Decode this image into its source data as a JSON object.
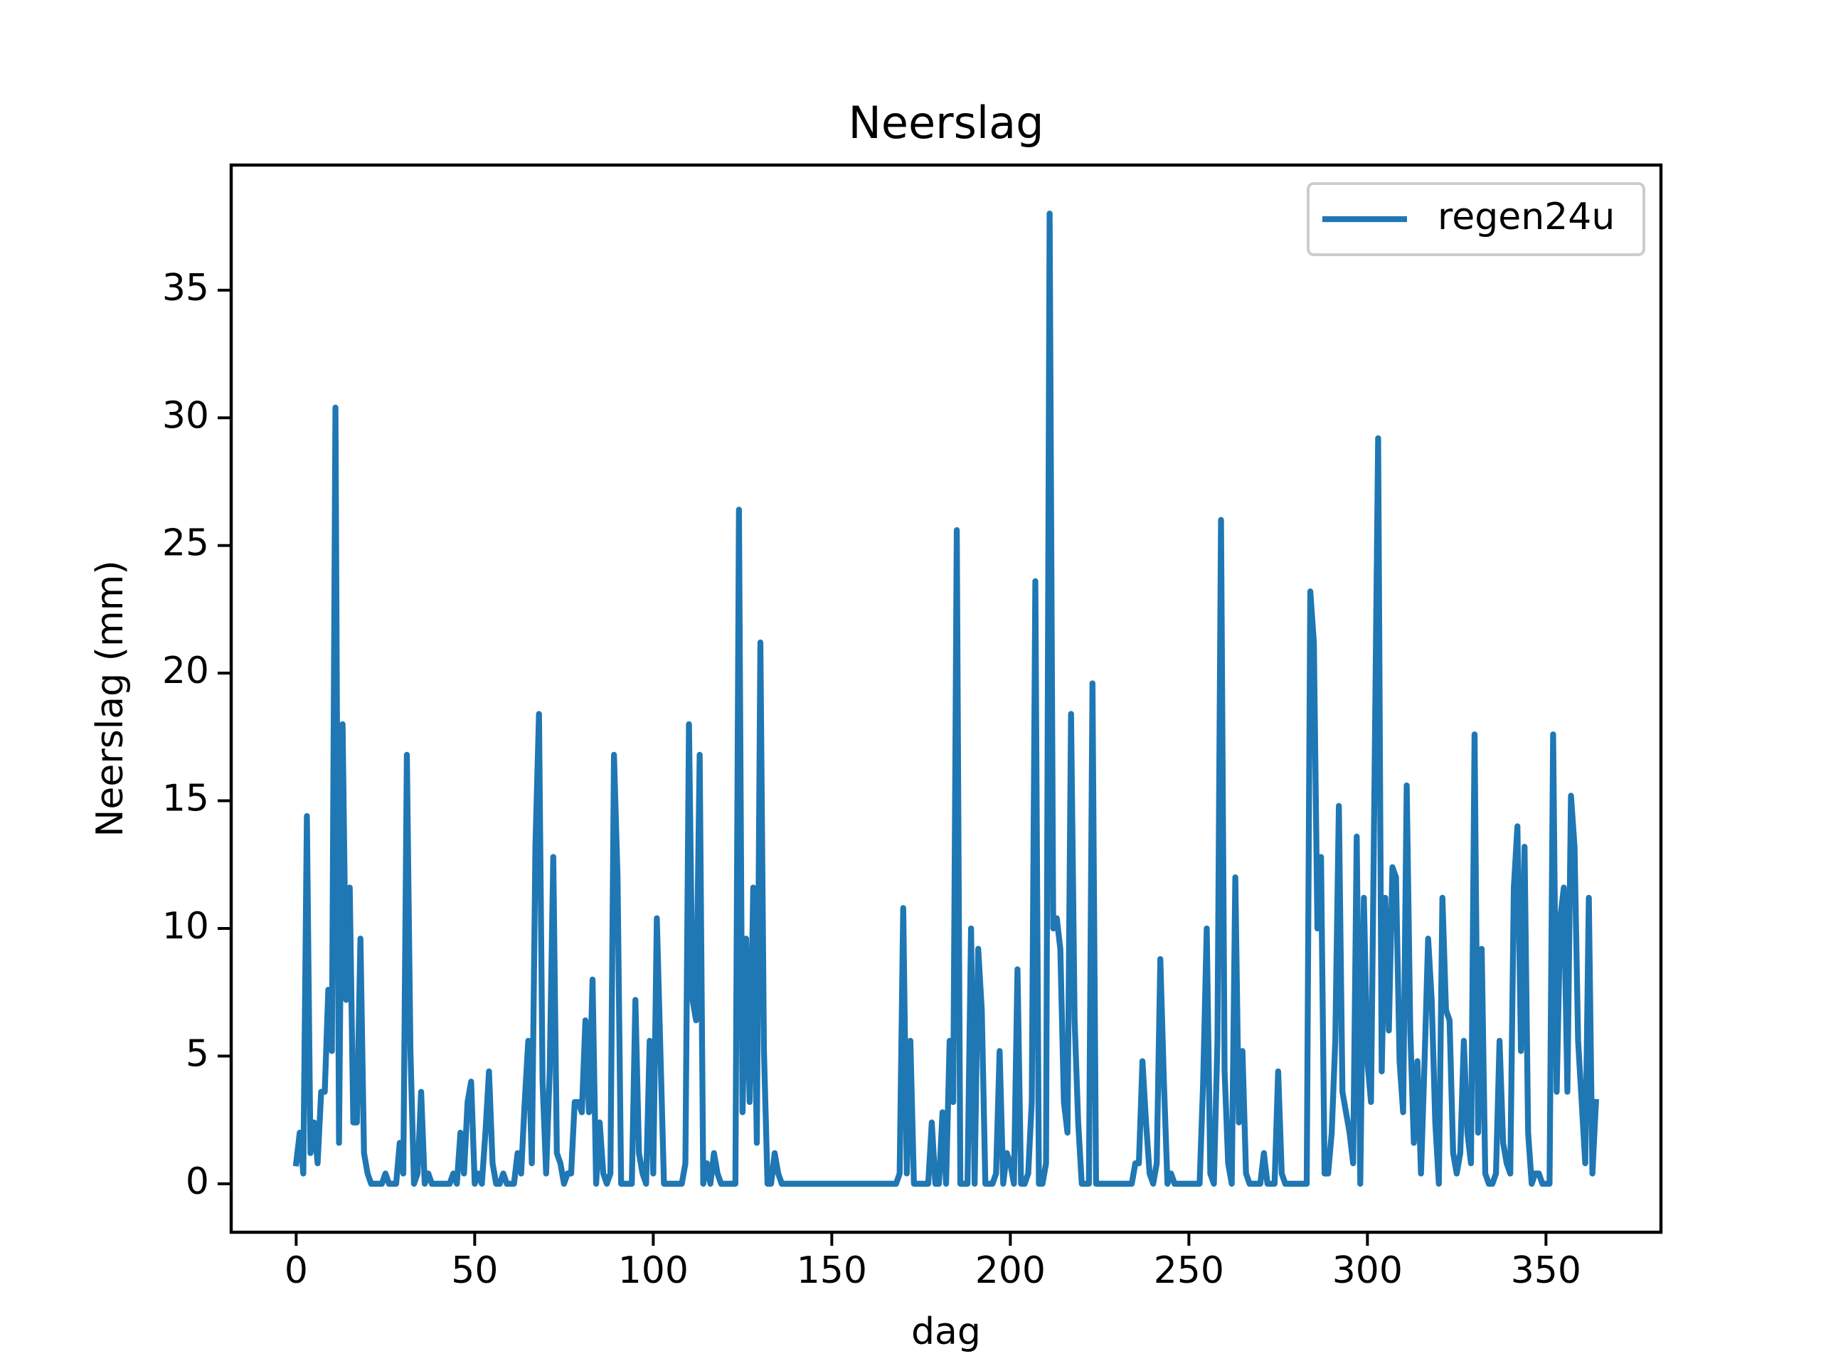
{
  "chart_data": {
    "type": "line",
    "title": "Neerslag",
    "xlabel": "dag",
    "ylabel": "Neerslag (mm)",
    "x": [
      0,
      1,
      2,
      3,
      4,
      5,
      6,
      7,
      8,
      9,
      10,
      11,
      12,
      13,
      14,
      15,
      16,
      17,
      18,
      19,
      20,
      21,
      22,
      23,
      24,
      25,
      26,
      27,
      28,
      29,
      30,
      31,
      32,
      33,
      34,
      35,
      36,
      37,
      38,
      39,
      40,
      41,
      42,
      43,
      44,
      45,
      46,
      47,
      48,
      49,
      50,
      51,
      52,
      53,
      54,
      55,
      56,
      57,
      58,
      59,
      60,
      61,
      62,
      63,
      64,
      65,
      66,
      67,
      68,
      69,
      70,
      71,
      72,
      73,
      74,
      75,
      76,
      77,
      78,
      79,
      80,
      81,
      82,
      83,
      84,
      85,
      86,
      87,
      88,
      89,
      90,
      91,
      92,
      93,
      94,
      95,
      96,
      97,
      98,
      99,
      100,
      101,
      102,
      103,
      104,
      105,
      106,
      107,
      108,
      109,
      110,
      111,
      112,
      113,
      114,
      115,
      116,
      117,
      118,
      119,
      120,
      121,
      122,
      123,
      124,
      125,
      126,
      127,
      128,
      129,
      130,
      131,
      132,
      133,
      134,
      135,
      136,
      137,
      138,
      139,
      140,
      141,
      142,
      143,
      144,
      145,
      146,
      147,
      148,
      149,
      150,
      151,
      152,
      153,
      154,
      155,
      156,
      157,
      158,
      159,
      160,
      161,
      162,
      163,
      164,
      165,
      166,
      167,
      168,
      169,
      170,
      171,
      172,
      173,
      174,
      175,
      176,
      177,
      178,
      179,
      180,
      181,
      182,
      183,
      184,
      185,
      186,
      187,
      188,
      189,
      190,
      191,
      192,
      193,
      194,
      195,
      196,
      197,
      198,
      199,
      200,
      201,
      202,
      203,
      204,
      205,
      206,
      207,
      208,
      209,
      210,
      211,
      212,
      213,
      214,
      215,
      216,
      217,
      218,
      219,
      220,
      221,
      222,
      223,
      224,
      225,
      226,
      227,
      228,
      229,
      230,
      231,
      232,
      233,
      234,
      235,
      236,
      237,
      238,
      239,
      240,
      241,
      242,
      243,
      244,
      245,
      246,
      247,
      248,
      249,
      250,
      251,
      252,
      253,
      254,
      255,
      256,
      257,
      258,
      259,
      260,
      261,
      262,
      263,
      264,
      265,
      266,
      267,
      268,
      269,
      270,
      271,
      272,
      273,
      274,
      275,
      276,
      277,
      278,
      279,
      280,
      281,
      282,
      283,
      284,
      285,
      286,
      287,
      288,
      289,
      290,
      291,
      292,
      293,
      294,
      295,
      296,
      297,
      298,
      299,
      300,
      301,
      302,
      303,
      304,
      305,
      306,
      307,
      308,
      309,
      310,
      311,
      312,
      313,
      314,
      315,
      316,
      317,
      318,
      319,
      320,
      321,
      322,
      323,
      324,
      325,
      326,
      327,
      328,
      329,
      330,
      331,
      332,
      333,
      334,
      335,
      336,
      337,
      338,
      339,
      340,
      341,
      342,
      343,
      344,
      345,
      346,
      347,
      348,
      349,
      350,
      351,
      352,
      353,
      354,
      355,
      356,
      357,
      358,
      359,
      360,
      361,
      362,
      363,
      364
    ],
    "series": [
      {
        "name": "regen24u",
        "color": "#1f77b4",
        "values": [
          0.8,
          2,
          0.4,
          14.4,
          1.2,
          2.4,
          0.8,
          3.6,
          3.6,
          7.6,
          5.2,
          30.4,
          1.6,
          18,
          7.2,
          11.6,
          2.4,
          2.4,
          9.6,
          1.2,
          0.4,
          0,
          0,
          0,
          0,
          0.4,
          0,
          0,
          0,
          1.6,
          0.4,
          16.8,
          5.2,
          0,
          0.4,
          3.6,
          0,
          0.4,
          0,
          0,
          0,
          0,
          0,
          0,
          0.4,
          0,
          2,
          0.4,
          3.2,
          4,
          0,
          0.4,
          0,
          2,
          4.4,
          0.8,
          0,
          0,
          0.4,
          0,
          0,
          0,
          1.2,
          0.4,
          3.2,
          5.6,
          0.8,
          13.2,
          18.4,
          4,
          0.4,
          4.4,
          12.8,
          1.2,
          0.8,
          0,
          0.4,
          0.4,
          3.2,
          3.2,
          2.8,
          6.4,
          2.8,
          8,
          0,
          2.4,
          0.4,
          0,
          0.4,
          16.8,
          12,
          0,
          0,
          0,
          0,
          7.2,
          1.2,
          0.4,
          0,
          5.6,
          0.4,
          10.4,
          5.2,
          0,
          0,
          0,
          0,
          0,
          0,
          0.8,
          18,
          7.2,
          6.4,
          16.8,
          0,
          0.8,
          0,
          1.2,
          0.4,
          0,
          0,
          0,
          0,
          0,
          26.4,
          2.8,
          9.6,
          3.2,
          11.6,
          1.6,
          21.2,
          5.2,
          0,
          0,
          1.2,
          0.4,
          0,
          0,
          0,
          0,
          0,
          0,
          0,
          0,
          0,
          0,
          0,
          0,
          0,
          0,
          0,
          0,
          0,
          0,
          0,
          0,
          0,
          0,
          0,
          0,
          0,
          0,
          0,
          0,
          0,
          0,
          0,
          0,
          0,
          0.4,
          10.8,
          0.4,
          5.6,
          0,
          0,
          0,
          0,
          0,
          2.4,
          0,
          0,
          2.8,
          0,
          5.6,
          3.2,
          25.6,
          0,
          0,
          0,
          10,
          0,
          9.2,
          6.8,
          0,
          0,
          0,
          0.4,
          5.2,
          0,
          1.2,
          0.8,
          0,
          8.4,
          0,
          0,
          0.4,
          3.2,
          23.6,
          0,
          0,
          0.8,
          38,
          10,
          10.4,
          9.2,
          3.2,
          2,
          18.4,
          6.4,
          2.4,
          0,
          0,
          0,
          19.6,
          0,
          0,
          0,
          0,
          0,
          0,
          0,
          0,
          0,
          0,
          0,
          0.8,
          0.8,
          4.8,
          2.4,
          0.4,
          0,
          0.8,
          8.8,
          4,
          0,
          0.4,
          0,
          0,
          0,
          0,
          0,
          0,
          0,
          0,
          4,
          10,
          0.4,
          0,
          5.6,
          26,
          4.4,
          0.8,
          0,
          12,
          2.4,
          5.2,
          0.4,
          0,
          0,
          0,
          0,
          1.2,
          0,
          0,
          0,
          4.4,
          0.4,
          0,
          0,
          0,
          0,
          0,
          0,
          0,
          23.2,
          21.2,
          10,
          12.8,
          0.4,
          0.4,
          2,
          5.6,
          14.8,
          3.6,
          2.8,
          2,
          0.8,
          13.6,
          0,
          11.2,
          4.8,
          3.2,
          16,
          29.2,
          4.4,
          11.2,
          6,
          12.4,
          12,
          4.8,
          2.8,
          15.6,
          6,
          1.6,
          4.8,
          0.4,
          4.8,
          9.6,
          7.2,
          2.4,
          0,
          11.2,
          6.8,
          6.4,
          1.2,
          0.4,
          1.2,
          5.6,
          2,
          0.8,
          17.6,
          2,
          9.2,
          0.4,
          0,
          0,
          0.4,
          5.6,
          1.6,
          0.8,
          0.4,
          11.6,
          14,
          5.2,
          13.2,
          2,
          0,
          0.4,
          0.4,
          0,
          0,
          0,
          17.6,
          3.6,
          10.4,
          11.6,
          3.6,
          15.2,
          13.2,
          5.6,
          3.2,
          0.8,
          11.2,
          0.4,
          3.2
        ]
      }
    ],
    "xlim": [
      -18.2,
      382.2
    ],
    "ylim": [
      -1.9,
      39.9
    ],
    "xticks": [
      0,
      50,
      100,
      150,
      200,
      250,
      300,
      350
    ],
    "yticks": [
      0,
      5,
      10,
      15,
      20,
      25,
      30,
      35
    ],
    "grid": false,
    "legend": "upper right"
  }
}
